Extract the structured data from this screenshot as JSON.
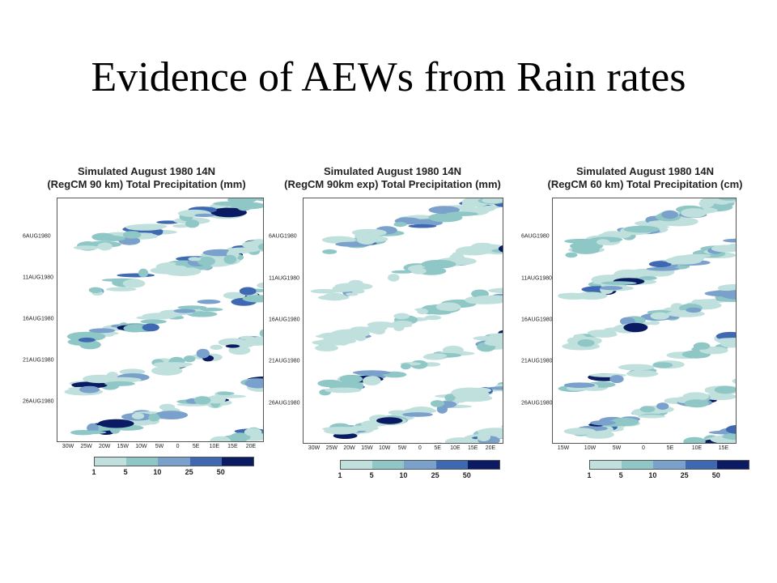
{
  "slide": {
    "title": "Evidence of AEWs from Rain rates"
  },
  "colors": {
    "levels": [
      "#bfe0dc",
      "#8fc6c6",
      "#7aa0cc",
      "#3e69b2",
      "#0a1b63"
    ]
  },
  "chart_data": [
    {
      "type": "heatmap",
      "title_line1": "Simulated August 1980 14N",
      "title_line2": "(RegCM 90 km) Total Precipitation (mm)",
      "y_ticks": [
        "6AUG1980",
        "11AUG1980",
        "16AUG1980",
        "21AUG1980",
        "26AUG1980"
      ],
      "x_ticks": [
        "30W",
        "25W",
        "20W",
        "15W",
        "10W",
        "5W",
        "0",
        "5E",
        "10E",
        "15E",
        "20E"
      ],
      "xlim": [
        -32,
        22
      ],
      "colorbar_labels": [
        "1",
        "5",
        "10",
        "25",
        "50"
      ],
      "contour_levels": [
        1,
        5,
        10,
        25,
        50
      ],
      "pattern": "westward-propagating rain bands from east to west over time"
    },
    {
      "type": "heatmap",
      "title_line1": "Simulated August 1980 14N",
      "title_line2": "(RegCM 90km exp) Total Precipitation (mm)",
      "y_ticks": [
        "6AUG1980",
        "11AUG1980",
        "16AUG1980",
        "21AUG1980",
        "26AUG1980"
      ],
      "x_ticks": [
        "30W",
        "25W",
        "20W",
        "15W",
        "10W",
        "5W",
        "0",
        "5E",
        "10E",
        "15E",
        "20E"
      ],
      "xlim": [
        -32,
        22
      ],
      "colorbar_labels": [
        "1",
        "5",
        "10",
        "25",
        "50"
      ],
      "contour_levels": [
        1,
        5,
        10,
        25,
        50
      ],
      "pattern": "westward-propagating rain bands from east to west over time"
    },
    {
      "type": "heatmap",
      "title_line1": "Simulated August 1980 14N",
      "title_line2": "(RegCM 60 km) Total Precipitation (cm)",
      "y_ticks": [
        "6AUG1980",
        "11AUG1980",
        "16AUG1980",
        "21AUG1980",
        "26AUG1980"
      ],
      "x_ticks": [
        "15W",
        "10W",
        "5W",
        "0",
        "5E",
        "10E",
        "15E"
      ],
      "xlim": [
        -19,
        19
      ],
      "colorbar_labels": [
        "1",
        "5",
        "10",
        "25",
        "50"
      ],
      "contour_levels": [
        1,
        5,
        10,
        25,
        50
      ],
      "pattern": "westward-propagating rain bands from east to west over time"
    }
  ]
}
